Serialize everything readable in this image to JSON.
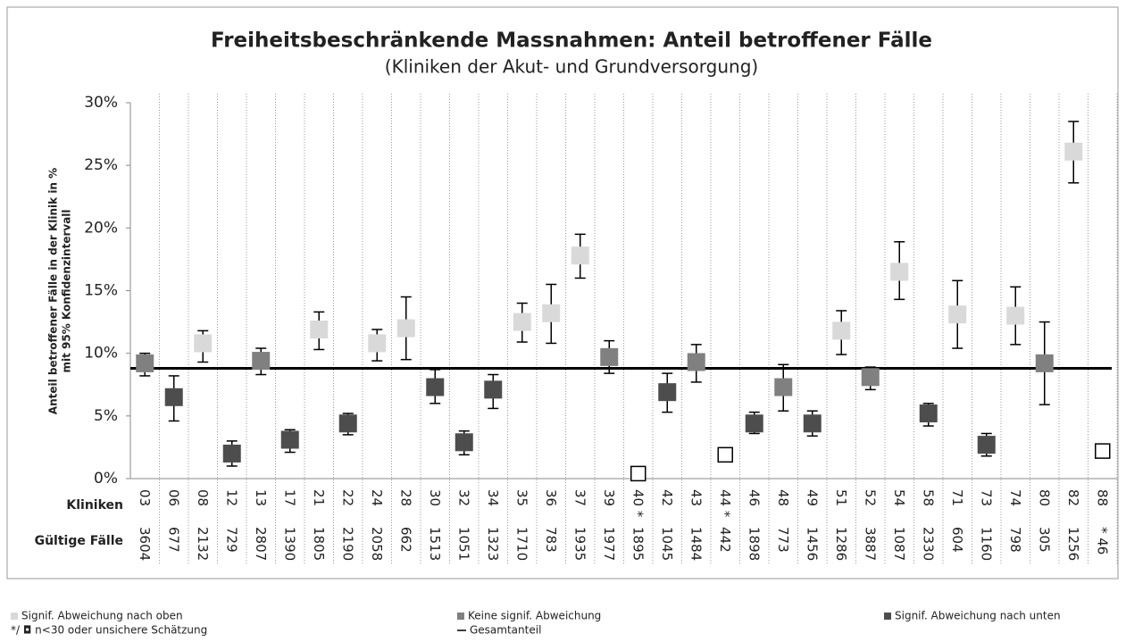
{
  "chart_data": {
    "type": "errorbar",
    "title": "Freiheitsbeschränkende Massnahmen: Anteil betroffener Fälle",
    "subtitle": "(Kliniken der Akut- und Grundversorgung)",
    "y_label": "Anteil betroffener Fälle in der Klinik in %",
    "y_label2": "mit 95% Konfidenzintervall",
    "category_row_label": "Kliniken",
    "cases_row_label": "Gültige Fälle",
    "categories": [
      "03",
      "06",
      "08",
      "12",
      "13",
      "17",
      "21",
      "22",
      "24",
      "28",
      "30",
      "32",
      "34",
      "35",
      "36",
      "37",
      "39",
      "40 *",
      "42",
      "43",
      "44 *",
      "46",
      "48",
      "49",
      "51",
      "52",
      "54",
      "58",
      "71",
      "73",
      "74",
      "80",
      "82",
      "88"
    ],
    "cases": [
      "3604",
      "677",
      "2132",
      "729",
      "2807",
      "1390",
      "1805",
      "2190",
      "2058",
      "662",
      "1513",
      "1051",
      "1323",
      "1710",
      "783",
      "1935",
      "1977",
      "1895",
      "1045",
      "1484",
      "442",
      "1898",
      "773",
      "1456",
      "1286",
      "3887",
      "1087",
      "2330",
      "604",
      "1160",
      "798",
      "305",
      "1256",
      "* 46"
    ],
    "ylim": [
      0,
      30
    ],
    "yticks": [
      {
        "value": 0,
        "label": "0%"
      },
      {
        "value": 5,
        "label": "5%"
      },
      {
        "value": 10,
        "label": "10%"
      },
      {
        "value": 15,
        "label": "15%"
      },
      {
        "value": 20,
        "label": "20%"
      },
      {
        "value": 25,
        "label": "25%"
      },
      {
        "value": 30,
        "label": "30%"
      }
    ],
    "grid": true,
    "series": [
      {
        "name": "Signif. Abweichung nach oben",
        "color": "#d9d9d9",
        "values": [
          null,
          null,
          10.8,
          null,
          null,
          null,
          11.9,
          null,
          10.8,
          12.0,
          null,
          null,
          null,
          12.5,
          13.2,
          17.8,
          null,
          null,
          null,
          null,
          null,
          null,
          null,
          null,
          11.8,
          null,
          16.5,
          null,
          13.1,
          null,
          13.0,
          null,
          26.1,
          null
        ],
        "ci_low": [
          null,
          null,
          9.3,
          null,
          null,
          null,
          10.3,
          null,
          9.4,
          9.5,
          null,
          null,
          null,
          10.9,
          10.8,
          16.0,
          null,
          null,
          null,
          null,
          null,
          null,
          null,
          null,
          9.9,
          null,
          14.3,
          null,
          10.4,
          null,
          10.7,
          null,
          23.6,
          null
        ],
        "ci_high": [
          null,
          null,
          11.8,
          null,
          null,
          null,
          13.3,
          null,
          11.9,
          14.5,
          null,
          null,
          null,
          14.0,
          15.5,
          19.5,
          null,
          null,
          null,
          null,
          null,
          null,
          null,
          null,
          13.4,
          null,
          18.9,
          null,
          15.8,
          null,
          15.3,
          null,
          28.5,
          null
        ]
      },
      {
        "name": "Keine signif. Abweichung",
        "color": "#808080",
        "values": [
          9.2,
          null,
          null,
          null,
          9.4,
          null,
          null,
          null,
          null,
          null,
          null,
          null,
          null,
          null,
          null,
          null,
          9.7,
          null,
          null,
          9.3,
          null,
          null,
          7.3,
          null,
          null,
          8.1,
          null,
          null,
          null,
          null,
          null,
          9.2,
          null,
          null
        ],
        "ci_low": [
          8.2,
          null,
          null,
          null,
          8.3,
          null,
          null,
          null,
          null,
          null,
          null,
          null,
          null,
          null,
          null,
          null,
          8.4,
          null,
          null,
          7.7,
          null,
          null,
          5.4,
          null,
          null,
          7.1,
          null,
          null,
          null,
          null,
          null,
          5.9,
          null,
          null
        ],
        "ci_high": [
          10.0,
          null,
          null,
          null,
          10.4,
          null,
          null,
          null,
          null,
          null,
          null,
          null,
          null,
          null,
          null,
          null,
          11.0,
          null,
          null,
          10.7,
          null,
          null,
          9.1,
          null,
          null,
          8.9,
          null,
          null,
          null,
          null,
          null,
          12.5,
          null,
          null
        ]
      },
      {
        "name": "Signif. Abweichung nach unten",
        "color": "#4d4d4d",
        "values": [
          null,
          6.5,
          null,
          2.0,
          null,
          3.1,
          null,
          4.4,
          null,
          null,
          7.3,
          2.9,
          7.1,
          null,
          null,
          null,
          null,
          null,
          6.9,
          null,
          null,
          4.4,
          null,
          4.4,
          null,
          null,
          null,
          5.2,
          null,
          2.7,
          null,
          null,
          null,
          null
        ],
        "ci_low": [
          null,
          4.6,
          null,
          1.0,
          null,
          2.1,
          null,
          3.5,
          null,
          null,
          6.0,
          1.9,
          5.6,
          null,
          null,
          null,
          null,
          null,
          5.3,
          null,
          null,
          3.6,
          null,
          3.4,
          null,
          null,
          null,
          4.2,
          null,
          1.8,
          null,
          null,
          null,
          null
        ],
        "ci_high": [
          null,
          8.2,
          null,
          3.0,
          null,
          3.9,
          null,
          5.2,
          null,
          null,
          8.7,
          3.8,
          8.3,
          null,
          null,
          null,
          null,
          null,
          8.4,
          null,
          null,
          5.3,
          null,
          5.4,
          null,
          null,
          null,
          6.0,
          null,
          3.6,
          null,
          null,
          null,
          null
        ]
      },
      {
        "name": "*/ ◘ n<30 oder unsichere Schätzung",
        "color": "#ffffff",
        "values": [
          null,
          null,
          null,
          null,
          null,
          null,
          null,
          null,
          null,
          null,
          null,
          null,
          null,
          null,
          null,
          null,
          null,
          0.4,
          null,
          null,
          1.9,
          null,
          null,
          null,
          null,
          null,
          null,
          null,
          null,
          null,
          null,
          null,
          null,
          2.2
        ]
      }
    ],
    "reference_line": {
      "name": "Gesamtanteil",
      "value": 8.8,
      "color": "#000000"
    }
  }
}
